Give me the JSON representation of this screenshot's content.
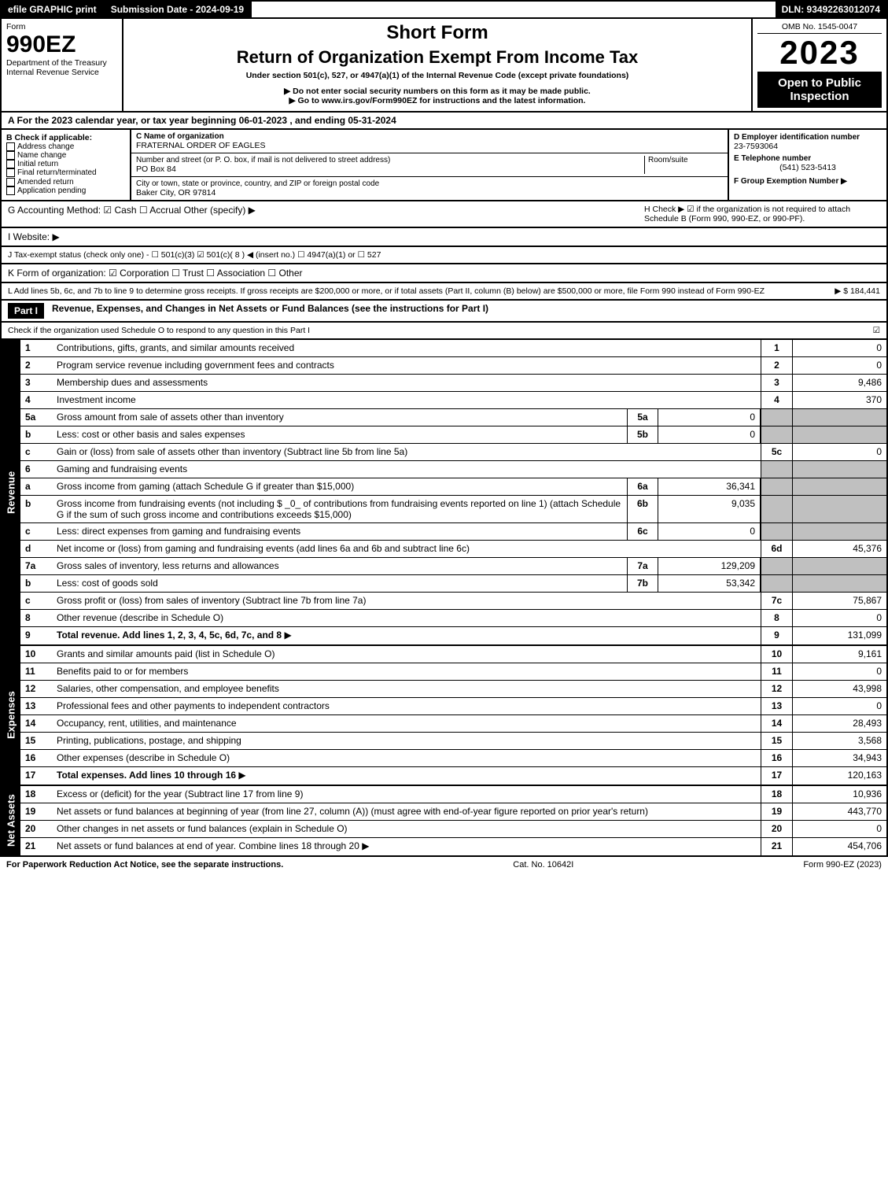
{
  "top_bar": {
    "efile": "efile GRAPHIC print",
    "submission": "Submission Date - 2024-09-19",
    "dln": "DLN: 93492263012074"
  },
  "header": {
    "form_label": "Form",
    "form_number": "990EZ",
    "dept": "Department of the Treasury",
    "irs": "Internal Revenue Service",
    "short_form": "Short Form",
    "title": "Return of Organization Exempt From Income Tax",
    "subtitle": "Under section 501(c), 527, or 4947(a)(1) of the Internal Revenue Code (except private foundations)",
    "note1": "▶ Do not enter social security numbers on this form as it may be made public.",
    "note2": "▶ Go to www.irs.gov/Form990EZ for instructions and the latest information.",
    "omb": "OMB No. 1545-0047",
    "year": "2023",
    "open": "Open to Public Inspection"
  },
  "section_a": "A  For the 2023 calendar year, or tax year beginning 06-01-2023 , and ending 05-31-2024",
  "section_b": {
    "label": "B  Check if applicable:",
    "items": [
      "Address change",
      "Name change",
      "Initial return",
      "Final return/terminated",
      "Amended return",
      "Application pending"
    ]
  },
  "section_c": {
    "name_label": "C Name of organization",
    "name": "FRATERNAL ORDER OF EAGLES",
    "street_label": "Number and street (or P. O. box, if mail is not delivered to street address)",
    "room_label": "Room/suite",
    "street": "PO Box 84",
    "city_label": "City or town, state or province, country, and ZIP or foreign postal code",
    "city": "Baker City, OR  97814"
  },
  "section_d": {
    "label": "D Employer identification number",
    "value": "23-7593064"
  },
  "section_e": {
    "label": "E Telephone number",
    "value": "(541) 523-5413"
  },
  "section_f": {
    "label": "F Group Exemption Number  ▶"
  },
  "section_g": "G Accounting Method:  ☑ Cash  ☐ Accrual  Other (specify) ▶",
  "section_h": "H  Check ▶ ☑ if the organization is not required to attach Schedule B (Form 990, 990-EZ, or 990-PF).",
  "section_i": "I Website: ▶",
  "section_j": "J Tax-exempt status (check only one) - ☐ 501(c)(3)  ☑ 501(c)( 8 ) ◀ (insert no.)  ☐ 4947(a)(1) or  ☐ 527",
  "section_k": "K Form of organization:  ☑ Corporation  ☐ Trust  ☐ Association  ☐ Other",
  "section_l": {
    "text": "L Add lines 5b, 6c, and 7b to line 9 to determine gross receipts. If gross receipts are $200,000 or more, or if total assets (Part II, column (B) below) are $500,000 or more, file Form 990 instead of Form 990-EZ",
    "value": "▶ $ 184,441"
  },
  "part1": {
    "title": "Part I",
    "heading": "Revenue, Expenses, and Changes in Net Assets or Fund Balances (see the instructions for Part I)",
    "check_note": "Check if the organization used Schedule O to respond to any question in this Part I",
    "checked": "☑"
  },
  "revenue": {
    "label": "Revenue",
    "lines": [
      {
        "n": "1",
        "d": "Contributions, gifts, grants, and similar amounts received",
        "c": "1",
        "v": "0"
      },
      {
        "n": "2",
        "d": "Program service revenue including government fees and contracts",
        "c": "2",
        "v": "0"
      },
      {
        "n": "3",
        "d": "Membership dues and assessments",
        "c": "3",
        "v": "9,486"
      },
      {
        "n": "4",
        "d": "Investment income",
        "c": "4",
        "v": "370"
      },
      {
        "n": "5a",
        "d": "Gross amount from sale of assets other than inventory",
        "mid": "5a",
        "midv": "0"
      },
      {
        "n": "b",
        "d": "Less: cost or other basis and sales expenses",
        "mid": "5b",
        "midv": "0"
      },
      {
        "n": "c",
        "d": "Gain or (loss) from sale of assets other than inventory (Subtract line 5b from line 5a)",
        "c": "5c",
        "v": "0"
      },
      {
        "n": "6",
        "d": "Gaming and fundraising events"
      },
      {
        "n": "a",
        "d": "Gross income from gaming (attach Schedule G if greater than $15,000)",
        "mid": "6a",
        "midv": "36,341"
      },
      {
        "n": "b",
        "d": "Gross income from fundraising events (not including $ _0_ of contributions from fundraising events reported on line 1) (attach Schedule G if the sum of such gross income and contributions exceeds $15,000)",
        "mid": "6b",
        "midv": "9,035"
      },
      {
        "n": "c",
        "d": "Less: direct expenses from gaming and fundraising events",
        "mid": "6c",
        "midv": "0"
      },
      {
        "n": "d",
        "d": "Net income or (loss) from gaming and fundraising events (add lines 6a and 6b and subtract line 6c)",
        "c": "6d",
        "v": "45,376"
      },
      {
        "n": "7a",
        "d": "Gross sales of inventory, less returns and allowances",
        "mid": "7a",
        "midv": "129,209"
      },
      {
        "n": "b",
        "d": "Less: cost of goods sold",
        "mid": "7b",
        "midv": "53,342"
      },
      {
        "n": "c",
        "d": "Gross profit or (loss) from sales of inventory (Subtract line 7b from line 7a)",
        "c": "7c",
        "v": "75,867"
      },
      {
        "n": "8",
        "d": "Other revenue (describe in Schedule O)",
        "c": "8",
        "v": "0"
      },
      {
        "n": "9",
        "d": "Total revenue. Add lines 1, 2, 3, 4, 5c, 6d, 7c, and 8",
        "c": "9",
        "v": "131,099",
        "bold": true,
        "arrow": true
      }
    ]
  },
  "expenses": {
    "label": "Expenses",
    "lines": [
      {
        "n": "10",
        "d": "Grants and similar amounts paid (list in Schedule O)",
        "c": "10",
        "v": "9,161"
      },
      {
        "n": "11",
        "d": "Benefits paid to or for members",
        "c": "11",
        "v": "0"
      },
      {
        "n": "12",
        "d": "Salaries, other compensation, and employee benefits",
        "c": "12",
        "v": "43,998"
      },
      {
        "n": "13",
        "d": "Professional fees and other payments to independent contractors",
        "c": "13",
        "v": "0"
      },
      {
        "n": "14",
        "d": "Occupancy, rent, utilities, and maintenance",
        "c": "14",
        "v": "28,493"
      },
      {
        "n": "15",
        "d": "Printing, publications, postage, and shipping",
        "c": "15",
        "v": "3,568"
      },
      {
        "n": "16",
        "d": "Other expenses (describe in Schedule O)",
        "c": "16",
        "v": "34,943"
      },
      {
        "n": "17",
        "d": "Total expenses. Add lines 10 through 16",
        "c": "17",
        "v": "120,163",
        "bold": true,
        "arrow": true
      }
    ]
  },
  "netassets": {
    "label": "Net Assets",
    "lines": [
      {
        "n": "18",
        "d": "Excess or (deficit) for the year (Subtract line 17 from line 9)",
        "c": "18",
        "v": "10,936"
      },
      {
        "n": "19",
        "d": "Net assets or fund balances at beginning of year (from line 27, column (A)) (must agree with end-of-year figure reported on prior year's return)",
        "c": "19",
        "v": "443,770"
      },
      {
        "n": "20",
        "d": "Other changes in net assets or fund balances (explain in Schedule O)",
        "c": "20",
        "v": "0"
      },
      {
        "n": "21",
        "d": "Net assets or fund balances at end of year. Combine lines 18 through 20",
        "c": "21",
        "v": "454,706",
        "arrow": true
      }
    ]
  },
  "footer": {
    "left": "For Paperwork Reduction Act Notice, see the separate instructions.",
    "mid": "Cat. No. 10642I",
    "right": "Form 990-EZ (2023)"
  }
}
